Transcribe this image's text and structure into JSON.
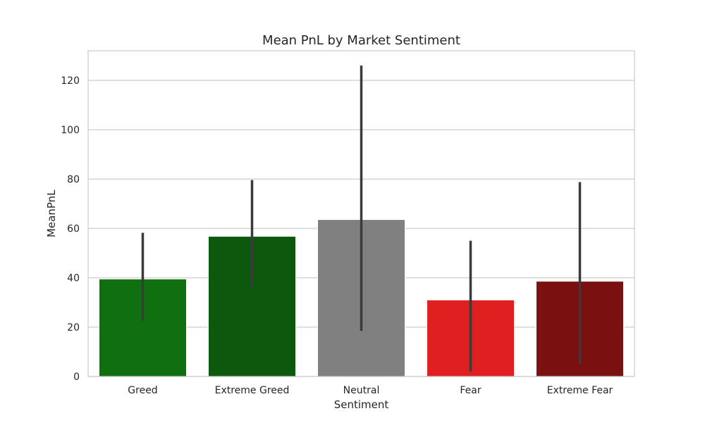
{
  "chart_data": {
    "type": "bar",
    "title": "Mean PnL by Market Sentiment",
    "xlabel": "Sentiment",
    "ylabel": "MeanPnL",
    "categories": [
      "Greed",
      "Extreme Greed",
      "Neutral",
      "Fear",
      "Extreme Fear"
    ],
    "values": [
      39.5,
      56.8,
      63.6,
      31.0,
      38.6
    ],
    "error_bars": [
      {
        "low": 22.5,
        "high": 58.2
      },
      {
        "low": 36.5,
        "high": 79.6
      },
      {
        "low": 18.5,
        "high": 126.0
      },
      {
        "low": 2.0,
        "high": 55.0
      },
      {
        "low": 5.0,
        "high": 78.8
      }
    ],
    "colors": [
      "#107010",
      "#0c580c",
      "#808080",
      "#e02020",
      "#7a1010"
    ],
    "ylim": [
      0,
      132
    ],
    "yticks": [
      0,
      20,
      40,
      60,
      80,
      100,
      120
    ],
    "grid": true,
    "grid_color": "#cccccc",
    "error_bar_color": "#3b3b3b"
  }
}
